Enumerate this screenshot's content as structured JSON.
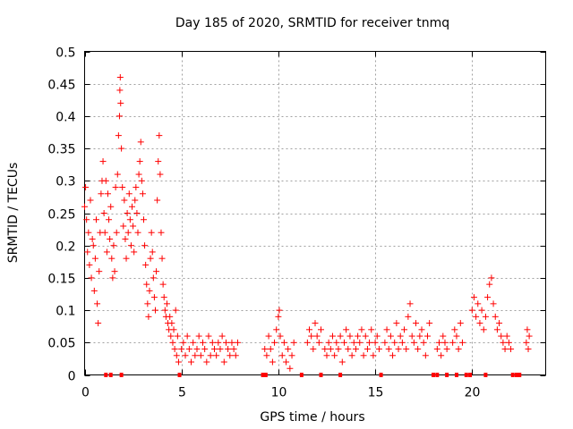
{
  "chart_data": {
    "type": "scatter",
    "title": "Day 185 of 2020, SRMTID for receiver tnmq",
    "xlabel": "GPS time / hours",
    "ylabel": "SRMTID / TECUs",
    "xlim": [
      0,
      23.8
    ],
    "ylim": [
      0,
      0.5
    ],
    "grid": true,
    "marker": "plus",
    "color": "#ff0000",
    "xticks": [
      {
        "value": 0,
        "label": "0"
      },
      {
        "value": 5,
        "label": "5"
      },
      {
        "value": 10,
        "label": "10"
      },
      {
        "value": 15,
        "label": "15"
      },
      {
        "value": 20,
        "label": "20"
      }
    ],
    "yticks": [
      {
        "value": 0,
        "label": "0"
      },
      {
        "value": 0.05,
        "label": "0.05"
      },
      {
        "value": 0.1,
        "label": "0.1"
      },
      {
        "value": 0.15,
        "label": "0.15"
      },
      {
        "value": 0.2,
        "label": "0.2"
      },
      {
        "value": 0.25,
        "label": "0.25"
      },
      {
        "value": 0.3,
        "label": "0.3"
      },
      {
        "value": 0.35,
        "label": "0.35"
      },
      {
        "value": 0.4,
        "label": "0.4"
      },
      {
        "value": 0.45,
        "label": "0.45"
      },
      {
        "value": 0.5,
        "label": "0.5"
      }
    ],
    "series": [
      {
        "name": "SRMTID",
        "points": [
          [
            0.0,
            0.26
          ],
          [
            0.05,
            0.29
          ],
          [
            0.1,
            0.24
          ],
          [
            0.15,
            0.19
          ],
          [
            0.2,
            0.22
          ],
          [
            0.25,
            0.17
          ],
          [
            0.3,
            0.27
          ],
          [
            0.35,
            0.15
          ],
          [
            0.4,
            0.21
          ],
          [
            0.45,
            0.2
          ],
          [
            0.5,
            0.13
          ],
          [
            0.55,
            0.18
          ],
          [
            0.6,
            0.24
          ],
          [
            0.65,
            0.11
          ],
          [
            0.7,
            0.08
          ],
          [
            0.75,
            0.16
          ],
          [
            0.8,
            0.22
          ],
          [
            0.85,
            0.28
          ],
          [
            0.9,
            0.3
          ],
          [
            0.95,
            0.33
          ],
          [
            1.0,
            0.25
          ],
          [
            1.05,
            0.22
          ],
          [
            1.1,
            0.3
          ],
          [
            1.15,
            0.19
          ],
          [
            1.2,
            0.28
          ],
          [
            1.25,
            0.24
          ],
          [
            1.3,
            0.21
          ],
          [
            1.35,
            0.26
          ],
          [
            1.4,
            0.18
          ],
          [
            1.45,
            0.15
          ],
          [
            1.5,
            0.2
          ],
          [
            1.55,
            0.16
          ],
          [
            1.6,
            0.29
          ],
          [
            1.65,
            0.22
          ],
          [
            1.7,
            0.31
          ],
          [
            1.75,
            0.37
          ],
          [
            1.8,
            0.4
          ],
          [
            1.82,
            0.44
          ],
          [
            1.84,
            0.46
          ],
          [
            1.86,
            0.42
          ],
          [
            1.9,
            0.35
          ],
          [
            1.95,
            0.29
          ],
          [
            2.0,
            0.23
          ],
          [
            2.05,
            0.27
          ],
          [
            2.1,
            0.21
          ],
          [
            2.15,
            0.18
          ],
          [
            2.2,
            0.25
          ],
          [
            2.25,
            0.22
          ],
          [
            2.3,
            0.28
          ],
          [
            2.35,
            0.24
          ],
          [
            2.4,
            0.2
          ],
          [
            2.45,
            0.26
          ],
          [
            2.5,
            0.23
          ],
          [
            2.55,
            0.19
          ],
          [
            2.6,
            0.27
          ],
          [
            2.65,
            0.29
          ],
          [
            2.7,
            0.25
          ],
          [
            2.75,
            0.22
          ],
          [
            2.8,
            0.31
          ],
          [
            2.85,
            0.33
          ],
          [
            2.9,
            0.36
          ],
          [
            2.95,
            0.3
          ],
          [
            3.0,
            0.28
          ],
          [
            3.05,
            0.24
          ],
          [
            3.1,
            0.2
          ],
          [
            3.15,
            0.17
          ],
          [
            3.2,
            0.14
          ],
          [
            3.25,
            0.11
          ],
          [
            3.3,
            0.09
          ],
          [
            3.35,
            0.13
          ],
          [
            3.4,
            0.18
          ],
          [
            3.45,
            0.22
          ],
          [
            3.5,
            0.19
          ],
          [
            3.55,
            0.15
          ],
          [
            3.6,
            0.12
          ],
          [
            3.65,
            0.1
          ],
          [
            3.7,
            0.16
          ],
          [
            3.75,
            0.27
          ],
          [
            3.8,
            0.33
          ],
          [
            3.85,
            0.37
          ],
          [
            3.9,
            0.31
          ],
          [
            3.95,
            0.22
          ],
          [
            4.0,
            0.18
          ],
          [
            4.05,
            0.14
          ],
          [
            4.1,
            0.12
          ],
          [
            4.15,
            0.1
          ],
          [
            4.2,
            0.09
          ],
          [
            4.25,
            0.11
          ],
          [
            4.3,
            0.08
          ],
          [
            4.35,
            0.07
          ],
          [
            4.4,
            0.09
          ],
          [
            4.45,
            0.06
          ],
          [
            4.5,
            0.08
          ],
          [
            4.55,
            0.05
          ],
          [
            4.6,
            0.07
          ],
          [
            4.65,
            0.04
          ],
          [
            4.7,
            0.1
          ],
          [
            4.75,
            0.03
          ],
          [
            4.8,
            0.06
          ],
          [
            4.85,
            0.02
          ],
          [
            5.0,
            0.04
          ],
          [
            5.1,
            0.05
          ],
          [
            5.2,
            0.03
          ],
          [
            5.3,
            0.06
          ],
          [
            5.4,
            0.04
          ],
          [
            5.5,
            0.02
          ],
          [
            5.6,
            0.05
          ],
          [
            5.7,
            0.03
          ],
          [
            5.8,
            0.04
          ],
          [
            5.9,
            0.06
          ],
          [
            6.0,
            0.03
          ],
          [
            6.1,
            0.05
          ],
          [
            6.2,
            0.04
          ],
          [
            6.3,
            0.02
          ],
          [
            6.4,
            0.06
          ],
          [
            6.5,
            0.03
          ],
          [
            6.6,
            0.05
          ],
          [
            6.7,
            0.04
          ],
          [
            6.8,
            0.03
          ],
          [
            6.9,
            0.05
          ],
          [
            7.0,
            0.04
          ],
          [
            7.1,
            0.06
          ],
          [
            7.2,
            0.02
          ],
          [
            7.3,
            0.05
          ],
          [
            7.4,
            0.04
          ],
          [
            7.5,
            0.03
          ],
          [
            7.6,
            0.05
          ],
          [
            7.7,
            0.04
          ],
          [
            7.8,
            0.03
          ],
          [
            7.9,
            0.05
          ],
          [
            9.3,
            0.04
          ],
          [
            9.4,
            0.03
          ],
          [
            9.5,
            0.06
          ],
          [
            9.6,
            0.04
          ],
          [
            9.7,
            0.02
          ],
          [
            9.8,
            0.05
          ],
          [
            9.9,
            0.07
          ],
          [
            10.0,
            0.09
          ],
          [
            10.05,
            0.1
          ],
          [
            10.1,
            0.06
          ],
          [
            10.2,
            0.03
          ],
          [
            10.3,
            0.05
          ],
          [
            10.4,
            0.02
          ],
          [
            10.5,
            0.04
          ],
          [
            10.6,
            0.01
          ],
          [
            10.7,
            0.03
          ],
          [
            10.8,
            0.05
          ],
          [
            11.5,
            0.05
          ],
          [
            11.6,
            0.07
          ],
          [
            11.7,
            0.06
          ],
          [
            11.8,
            0.04
          ],
          [
            11.9,
            0.08
          ],
          [
            12.0,
            0.06
          ],
          [
            12.1,
            0.05
          ],
          [
            12.2,
            0.07
          ],
          [
            12.4,
            0.04
          ],
          [
            12.5,
            0.03
          ],
          [
            12.6,
            0.05
          ],
          [
            12.7,
            0.04
          ],
          [
            12.8,
            0.06
          ],
          [
            12.9,
            0.03
          ],
          [
            13.0,
            0.05
          ],
          [
            13.1,
            0.04
          ],
          [
            13.2,
            0.06
          ],
          [
            13.3,
            0.02
          ],
          [
            13.4,
            0.05
          ],
          [
            13.5,
            0.07
          ],
          [
            13.6,
            0.04
          ],
          [
            13.7,
            0.06
          ],
          [
            13.8,
            0.03
          ],
          [
            13.9,
            0.05
          ],
          [
            14.0,
            0.04
          ],
          [
            14.1,
            0.06
          ],
          [
            14.2,
            0.05
          ],
          [
            14.3,
            0.07
          ],
          [
            14.4,
            0.03
          ],
          [
            14.5,
            0.06
          ],
          [
            14.6,
            0.04
          ],
          [
            14.7,
            0.05
          ],
          [
            14.8,
            0.07
          ],
          [
            14.9,
            0.03
          ],
          [
            15.0,
            0.05
          ],
          [
            15.1,
            0.06
          ],
          [
            15.2,
            0.04
          ],
          [
            15.5,
            0.05
          ],
          [
            15.6,
            0.07
          ],
          [
            15.7,
            0.04
          ],
          [
            15.8,
            0.06
          ],
          [
            15.9,
            0.03
          ],
          [
            16.0,
            0.05
          ],
          [
            16.1,
            0.08
          ],
          [
            16.2,
            0.04
          ],
          [
            16.3,
            0.06
          ],
          [
            16.4,
            0.05
          ],
          [
            16.5,
            0.07
          ],
          [
            16.6,
            0.04
          ],
          [
            16.7,
            0.09
          ],
          [
            16.8,
            0.11
          ],
          [
            16.9,
            0.06
          ],
          [
            17.0,
            0.05
          ],
          [
            17.1,
            0.08
          ],
          [
            17.2,
            0.04
          ],
          [
            17.3,
            0.06
          ],
          [
            17.4,
            0.07
          ],
          [
            17.5,
            0.05
          ],
          [
            17.6,
            0.03
          ],
          [
            17.7,
            0.06
          ],
          [
            17.8,
            0.08
          ],
          [
            18.2,
            0.04
          ],
          [
            18.3,
            0.05
          ],
          [
            18.4,
            0.03
          ],
          [
            18.5,
            0.06
          ],
          [
            18.6,
            0.05
          ],
          [
            18.7,
            0.04
          ],
          [
            19.0,
            0.05
          ],
          [
            19.1,
            0.07
          ],
          [
            19.2,
            0.06
          ],
          [
            19.3,
            0.04
          ],
          [
            19.4,
            0.08
          ],
          [
            19.5,
            0.05
          ],
          [
            20.0,
            0.1
          ],
          [
            20.1,
            0.12
          ],
          [
            20.2,
            0.09
          ],
          [
            20.3,
            0.11
          ],
          [
            20.4,
            0.08
          ],
          [
            20.5,
            0.1
          ],
          [
            20.6,
            0.07
          ],
          [
            20.7,
            0.09
          ],
          [
            20.8,
            0.12
          ],
          [
            20.9,
            0.14
          ],
          [
            21.0,
            0.15
          ],
          [
            21.1,
            0.11
          ],
          [
            21.2,
            0.09
          ],
          [
            21.3,
            0.07
          ],
          [
            21.4,
            0.08
          ],
          [
            21.5,
            0.06
          ],
          [
            21.6,
            0.05
          ],
          [
            21.7,
            0.04
          ],
          [
            21.8,
            0.06
          ],
          [
            21.9,
            0.05
          ],
          [
            22.0,
            0.04
          ],
          [
            22.8,
            0.05
          ],
          [
            22.85,
            0.07
          ],
          [
            22.9,
            0.04
          ],
          [
            22.95,
            0.06
          ]
        ]
      }
    ],
    "zero_marks": [
      1.1,
      1.35,
      1.9,
      4.9,
      9.2,
      9.35,
      11.2,
      12.2,
      13.2,
      15.3,
      18.0,
      18.2,
      18.7,
      19.2,
      19.7,
      19.9,
      20.7,
      22.1,
      22.3,
      22.45
    ]
  }
}
